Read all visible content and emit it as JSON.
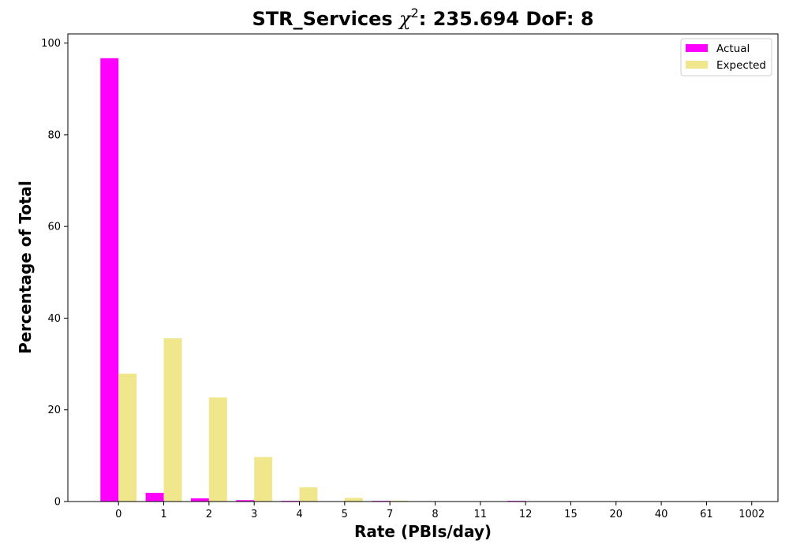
{
  "chart_data": {
    "type": "bar",
    "title_prefix": "STR_Services ",
    "title_symbol": "χ",
    "title_superscript": "2",
    "title_suffix": ": 235.694 DoF: 8",
    "xlabel": "Rate (PBIs/day)",
    "ylabel": "Percentage of Total",
    "categories": [
      "0",
      "1",
      "2",
      "3",
      "4",
      "5",
      "7",
      "8",
      "11",
      "12",
      "15",
      "20",
      "40",
      "61",
      "1002"
    ],
    "ylim": [
      0,
      102
    ],
    "yticks": [
      0,
      20,
      40,
      60,
      80,
      100
    ],
    "grid": false,
    "legend_position": "top-right",
    "series": [
      {
        "name": "Actual",
        "color": "#ff00ff",
        "values": [
          96.7,
          1.9,
          0.7,
          0.3,
          0.15,
          0.05,
          0.15,
          0.05,
          0.05,
          0.15,
          0.05,
          0.05,
          0.05,
          0.05,
          0.05
        ]
      },
      {
        "name": "Expected",
        "color": "#f0e68c",
        "values": [
          27.9,
          35.6,
          22.7,
          9.7,
          3.1,
          0.8,
          0.2,
          0.05,
          0.0,
          0.0,
          0.0,
          0.0,
          0.0,
          0.0,
          0.0
        ]
      }
    ]
  }
}
